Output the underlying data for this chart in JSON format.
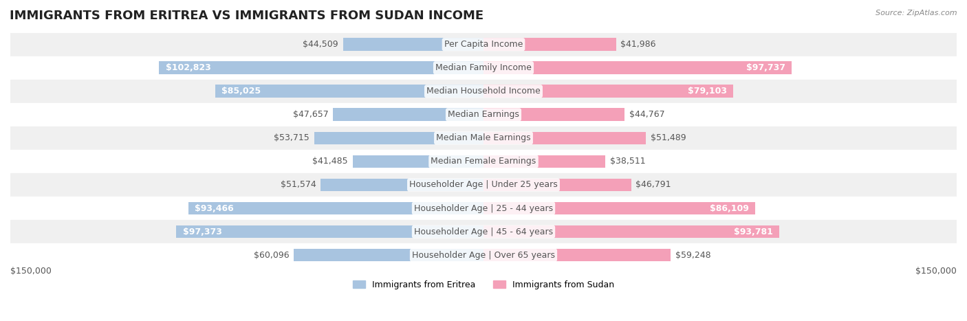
{
  "title": "IMMIGRANTS FROM ERITREA VS IMMIGRANTS FROM SUDAN INCOME",
  "source": "Source: ZipAtlas.com",
  "categories": [
    "Per Capita Income",
    "Median Family Income",
    "Median Household Income",
    "Median Earnings",
    "Median Male Earnings",
    "Median Female Earnings",
    "Householder Age | Under 25 years",
    "Householder Age | 25 - 44 years",
    "Householder Age | 45 - 64 years",
    "Householder Age | Over 65 years"
  ],
  "eritrea_values": [
    44509,
    102823,
    85025,
    47657,
    53715,
    41485,
    51574,
    93466,
    97373,
    60096
  ],
  "sudan_values": [
    41986,
    97737,
    79103,
    44767,
    51489,
    38511,
    46791,
    86109,
    93781,
    59248
  ],
  "eritrea_labels": [
    "$44,509",
    "$102,823",
    "$85,025",
    "$47,657",
    "$53,715",
    "$41,485",
    "$51,574",
    "$93,466",
    "$97,373",
    "$60,096"
  ],
  "sudan_labels": [
    "$41,986",
    "$97,737",
    "$79,103",
    "$44,767",
    "$51,489",
    "$38,511",
    "$46,791",
    "$86,109",
    "$93,781",
    "$59,248"
  ],
  "eritrea_color": "#a8c4e0",
  "sudan_color": "#f4a0b8",
  "eritrea_color_dark": "#7aafd4",
  "sudan_color_dark": "#f07090",
  "max_value": 150000,
  "bar_height": 0.55,
  "row_bg_color": "#f0f0f0",
  "row_alt_color": "#ffffff",
  "label_fontsize": 9,
  "title_fontsize": 13,
  "legend_eritrea": "Immigrants from Eritrea",
  "legend_sudan": "Immigrants from Sudan",
  "axis_label_left": "$150,000",
  "axis_label_right": "$150,000"
}
